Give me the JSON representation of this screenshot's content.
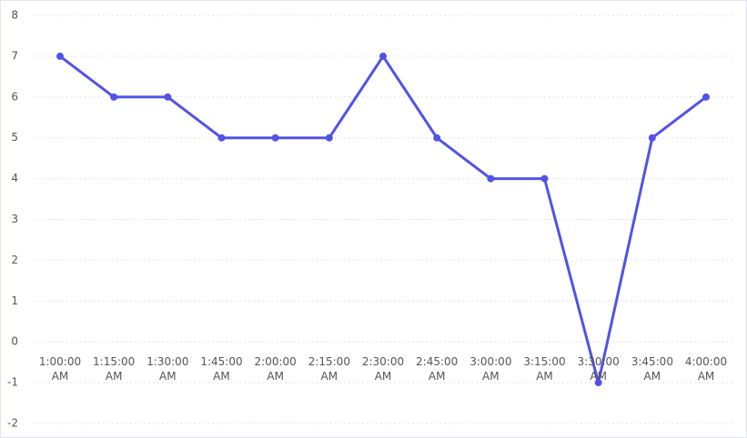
{
  "chart_data": {
    "type": "line",
    "categories": [
      "1:00:00 AM",
      "1:15:00 AM",
      "1:30:00 AM",
      "1:45:00 AM",
      "2:00:00 AM",
      "2:15:00 AM",
      "2:30:00 AM",
      "2:45:00 AM",
      "3:00:00 AM",
      "3:15:00 AM",
      "3:30:00 AM",
      "3:45:00 AM",
      "4:00:00 AM"
    ],
    "series": [
      {
        "color": "#5252e8",
        "values": [
          7,
          6,
          6,
          5,
          5,
          5,
          7,
          5,
          4,
          4,
          -1,
          5,
          6
        ]
      }
    ],
    "ylim": [
      -2,
      8
    ],
    "yticks": [
      -2,
      -1,
      0,
      1,
      2,
      3,
      4,
      5,
      6,
      7,
      8
    ],
    "grid": true
  }
}
